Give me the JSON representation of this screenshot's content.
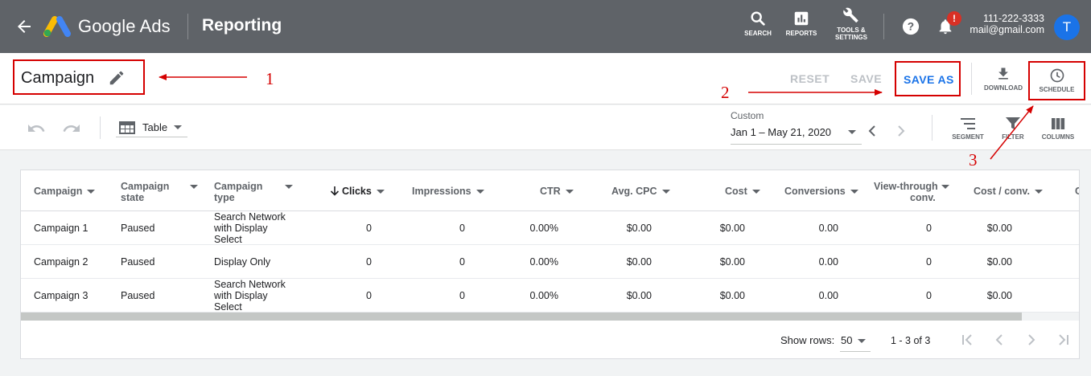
{
  "topbar": {
    "brand": "Google Ads",
    "section": "Reporting",
    "tools": [
      {
        "label": "SEARCH"
      },
      {
        "label": "REPORTS"
      },
      {
        "label": "TOOLS &",
        "label2": "SETTINGS"
      }
    ],
    "notification_badge": "!",
    "account_phone": "111-222-3333",
    "account_email": "mail@gmail.com",
    "avatar_initial": "T"
  },
  "titlebar": {
    "title": "Campaign",
    "reset_label": "RESET",
    "save_label": "SAVE",
    "save_as_label": "SAVE AS",
    "download_label": "DOWNLOAD",
    "schedule_label": "SCHEDULE"
  },
  "toolbar": {
    "view_label": "Table",
    "date_caption": "Custom",
    "date_range": "Jan 1 – May 21, 2020",
    "segment_label": "SEGMENT",
    "filter_label": "FILTER",
    "columns_label": "COLUMNS"
  },
  "table": {
    "headers": {
      "campaign": "Campaign",
      "campaign_state_1": "Campaign",
      "campaign_state_2": "state",
      "campaign_type_1": "Campaign",
      "campaign_type_2": "type",
      "clicks": "Clicks",
      "impressions": "Impressions",
      "ctr": "CTR",
      "avg_cpc": "Avg. CPC",
      "cost": "Cost",
      "conversions": "Conversions",
      "view_through_1": "View-through",
      "view_through_2": "conv.",
      "cost_per_conv": "Cost / conv.",
      "cut": "C"
    },
    "rows": [
      {
        "campaign": "Campaign 1",
        "state": "Paused",
        "type_1": "Search Network",
        "type_2": "with Display",
        "type_3": "Select",
        "clicks": "0",
        "impressions": "0",
        "ctr": "0.00%",
        "avg_cpc": "$0.00",
        "cost": "$0.00",
        "conversions": "0.00",
        "view_through": "0",
        "cost_per_conv": "$0.00"
      },
      {
        "campaign": "Campaign 2",
        "state": "Paused",
        "type_1": "Display Only",
        "type_2": "",
        "type_3": "",
        "clicks": "0",
        "impressions": "0",
        "ctr": "0.00%",
        "avg_cpc": "$0.00",
        "cost": "$0.00",
        "conversions": "0.00",
        "view_through": "0",
        "cost_per_conv": "$0.00"
      },
      {
        "campaign": "Campaign 3",
        "state": "Paused",
        "type_1": "Search Network",
        "type_2": "with Display",
        "type_3": "Select",
        "clicks": "0",
        "impressions": "0",
        "ctr": "0.00%",
        "avg_cpc": "$0.00",
        "cost": "$0.00",
        "conversions": "0.00",
        "view_through": "0",
        "cost_per_conv": "$0.00"
      }
    ],
    "show_rows_label": "Show rows:",
    "show_rows_value": "50",
    "range_text": "1 - 3 of 3"
  },
  "annotations": {
    "n1": "1",
    "n2": "2",
    "n3": "3",
    "color": "#d50000"
  },
  "colors": {
    "topbar": "#5f6368",
    "accent": "#1a73e8",
    "annotation": "#d50000"
  }
}
